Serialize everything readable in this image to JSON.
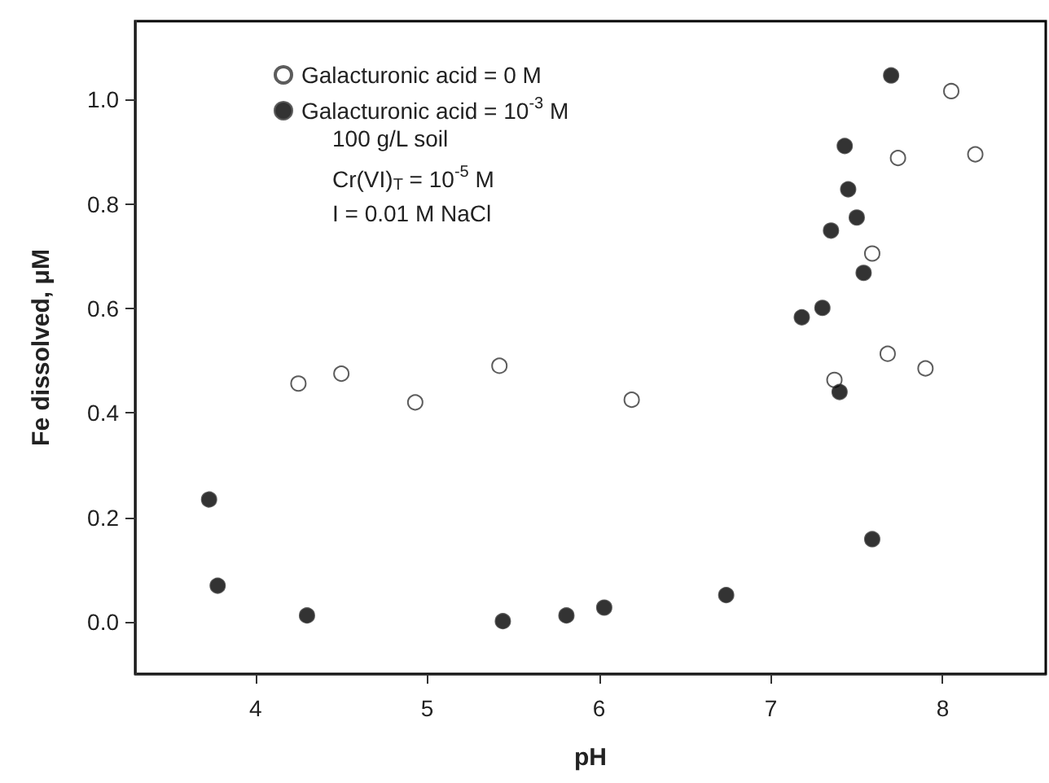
{
  "chart_data": {
    "type": "scatter",
    "xlabel": "pH",
    "ylabel": "Fe dissolved, μM",
    "xlim": [
      3.3,
      8.6
    ],
    "xticks": [
      4,
      5,
      6,
      7,
      8
    ],
    "ylim": [
      -0.1,
      1.15
    ],
    "yticks": [
      {
        "value": 0,
        "label": "0.0"
      },
      {
        "value": 0.2,
        "label": "0.2"
      },
      {
        "value": 0.4,
        "label": "0.4"
      },
      {
        "value": 0.6,
        "label": "0.6"
      },
      {
        "value": 0.8,
        "label": "0.8"
      },
      {
        "value": 1,
        "label": "1.0"
      }
    ],
    "grid": false,
    "legend": "top left",
    "marker": "circle",
    "annotations": [
      "100 g/L soil",
      "Cr(VI)$_{T}$ = 10$^{-5}$ M",
      "I = 0.01 M NaCl"
    ],
    "series": [
      {
        "name": "Galacturonic acid = 0 M",
        "color": "#ffffff",
        "x": [
          4.25,
          4.5,
          4.93,
          5.42,
          6.19,
          8.05,
          7.74,
          8.19,
          7.59,
          7.68,
          7.9,
          7.37
        ],
        "values": [
          0.456,
          0.475,
          0.42,
          0.49,
          0.425,
          1.016,
          0.888,
          0.895,
          0.705,
          0.513,
          0.485,
          0.463
        ]
      },
      {
        "name": "Galacturonic acid = 10$^{-3}$ M",
        "color": "#000000",
        "x": [
          7.7,
          7.43,
          7.45,
          7.5,
          7.35,
          7.54,
          7.3,
          7.18,
          7.4,
          7.59,
          6.74,
          6.03,
          5.81,
          3.73,
          3.78,
          4.3,
          5.44
        ],
        "values": [
          1.046,
          0.911,
          0.828,
          0.774,
          0.749,
          0.668,
          0.601,
          0.583,
          0.44,
          0.158,
          0.051,
          0.027,
          0.012,
          0.234,
          0.069,
          0.012,
          0.001
        ]
      }
    ]
  }
}
